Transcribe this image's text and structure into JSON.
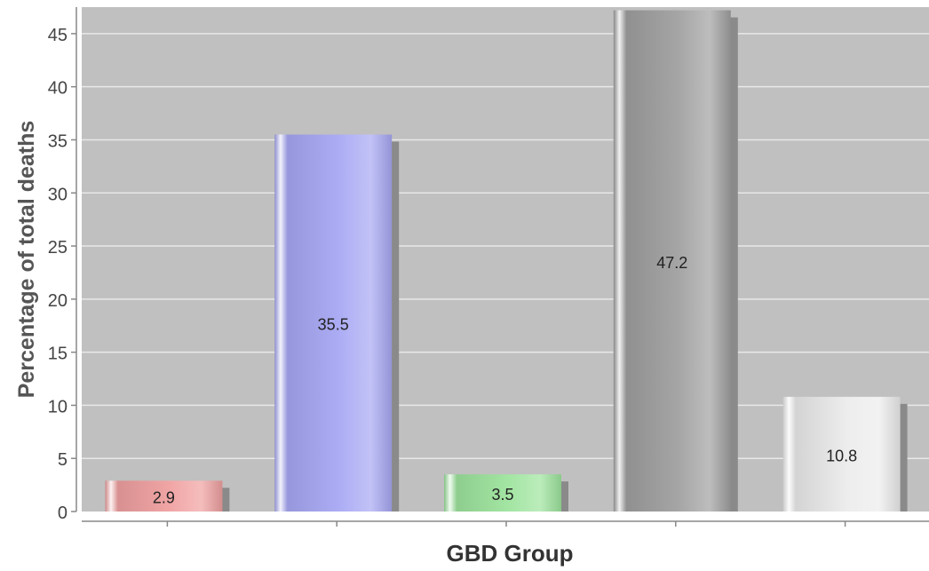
{
  "chart_data": {
    "type": "bar",
    "title": "",
    "xlabel": "GBD Group",
    "ylabel": "Percentage of total deaths",
    "categories": [
      "",
      "",
      "",
      "",
      ""
    ],
    "values": [
      2.9,
      35.5,
      3.5,
      47.2,
      10.8
    ],
    "data_labels": [
      "2.9",
      "35.5",
      "3.5",
      "47.2",
      "10.8"
    ],
    "bar_colors": [
      "#f0a0a0",
      "#a8a8f4",
      "#9ee49e",
      "#a0a0a0",
      "#ececec"
    ],
    "y_ticks": [
      0,
      5,
      10,
      15,
      20,
      25,
      30,
      35,
      40,
      45
    ],
    "ylim": [
      0,
      47.5
    ],
    "grid": true,
    "legend": "none",
    "plot_background": "#c0c0c0"
  }
}
